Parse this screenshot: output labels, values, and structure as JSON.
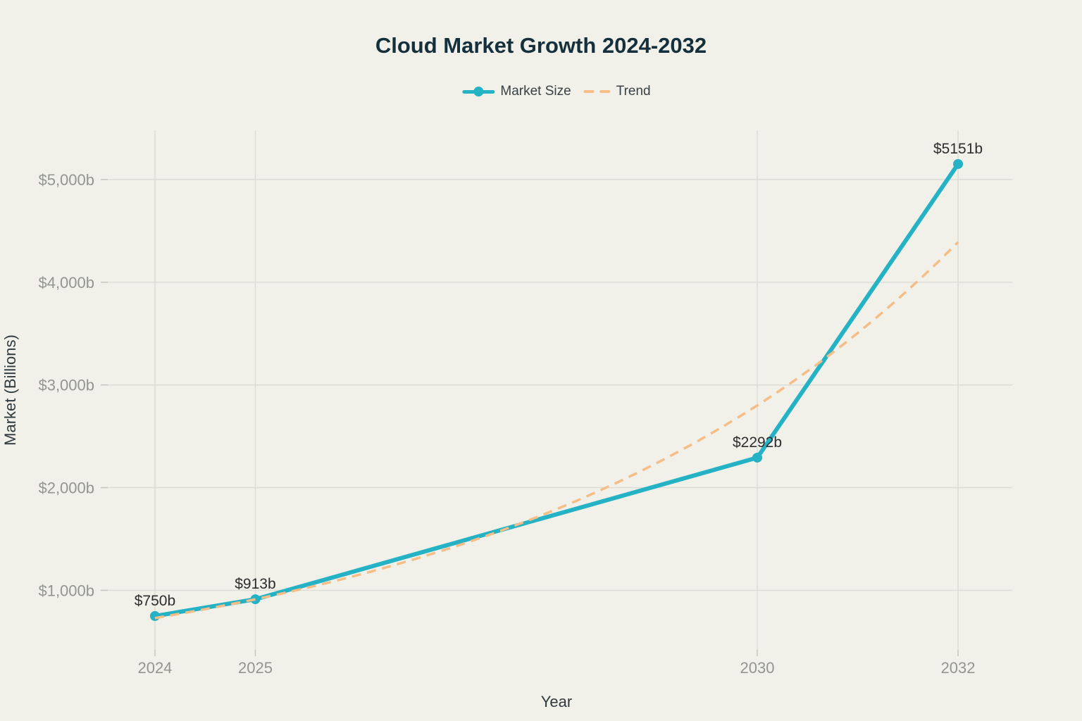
{
  "header": {
    "title": "Cloud Market Growth 2024-2032"
  },
  "legend": {
    "items": [
      {
        "label": "Market Size",
        "swatch": "solid-line-with-marker",
        "color": "#25B2C5"
      },
      {
        "label": "Trend",
        "swatch": "dashes",
        "color": "#F6BD87"
      }
    ]
  },
  "axes": {
    "x_title": "Year",
    "y_title": "Market (Billions)"
  },
  "colors": {
    "background": "#F1F1EA",
    "market_teal": "#25B2C5",
    "trend_orange": "#F6BD87",
    "gridline": "#DCDED6",
    "tick_mark": "#C6C8BF",
    "tick_label": "#93968E",
    "title_text": "#15303D",
    "axis_title_text": "#2F3A3E",
    "legend_text": "#3A4145",
    "point_label_text": "#2D2D2D"
  },
  "chart_data": {
    "type": "line",
    "title": "Cloud Market Growth 2024-2032",
    "xlabel": "Year",
    "ylabel": "Market (Billions)",
    "xlim": [
      2023.46,
      2032.54
    ],
    "ylim": [
      420,
      5480
    ],
    "grid": true,
    "legend_position": "top-center",
    "x_ticks": [
      {
        "value": 2024,
        "label": "2024"
      },
      {
        "value": 2025,
        "label": "2025"
      },
      {
        "value": 2030,
        "label": "2030"
      },
      {
        "value": 2032,
        "label": "2032"
      }
    ],
    "y_ticks": [
      {
        "value": 1000,
        "label": "$1,000b"
      },
      {
        "value": 2000,
        "label": "$2,000b"
      },
      {
        "value": 3000,
        "label": "$3,000b"
      },
      {
        "value": 4000,
        "label": "$4,000b"
      },
      {
        "value": 5000,
        "label": "$5,000b"
      }
    ],
    "series": [
      {
        "name": "Market Size",
        "color": "#25B2C5",
        "dash": "solid",
        "markers": true,
        "x": [
          2024,
          2025,
          2030,
          2032
        ],
        "values": [
          750,
          913,
          2292,
          5151
        ],
        "point_labels": [
          "$750b",
          "$913b",
          "$2292b",
          "$5151b"
        ]
      },
      {
        "name": "Trend",
        "color": "#F6BD87",
        "dash": "dashed",
        "markers": false,
        "interpolation": "exponential",
        "x": [
          2024,
          2025,
          2026,
          2027,
          2028,
          2029,
          2030,
          2031,
          2032
        ],
        "values": [
          730,
          913,
          1143,
          1430,
          1790,
          2240,
          2800,
          3505,
          4390
        ]
      }
    ]
  }
}
